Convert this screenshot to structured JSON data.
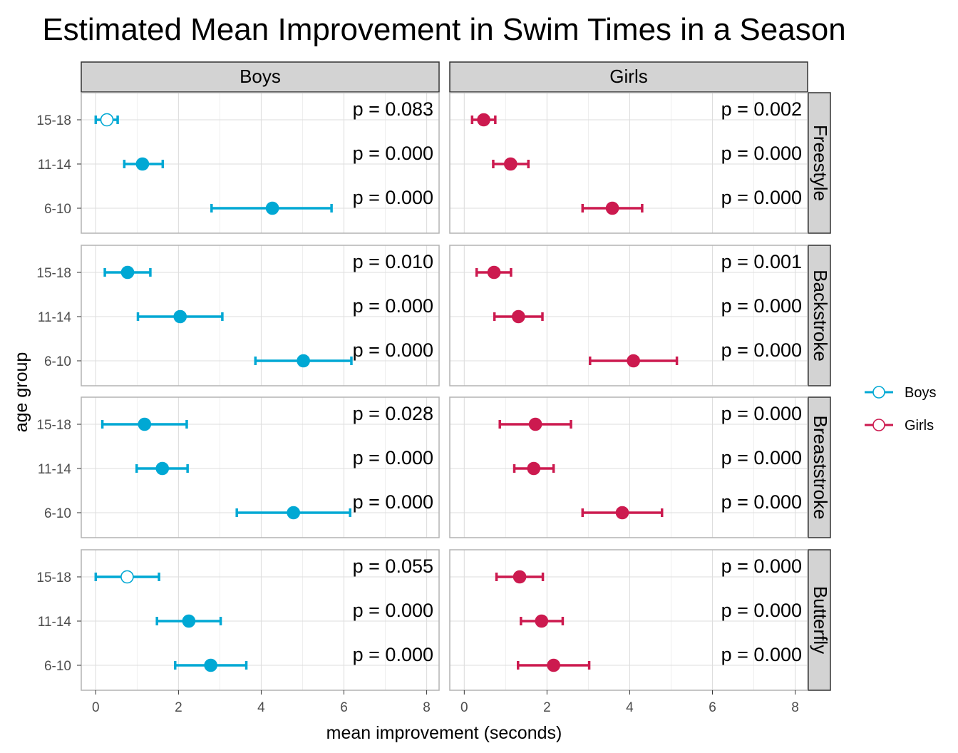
{
  "chart_data": {
    "type": "scatter",
    "title": "Estimated Mean Improvement in Swim Times in a Season",
    "xlabel": "mean improvement (seconds)",
    "ylabel": "age group",
    "xlim": [
      -0.35,
      8.3
    ],
    "x_ticks": [
      "0",
      "2",
      "4",
      "6",
      "8"
    ],
    "categories": [
      "15-18",
      "11-14",
      "6-10"
    ],
    "col_facets": [
      "Boys",
      "Girls"
    ],
    "row_facets": [
      "Freestyle",
      "Backstroke",
      "Breaststroke",
      "Butterfly"
    ],
    "grid": true,
    "legend_position": "right",
    "series": [
      {
        "name": "Boys",
        "color": "#00A8D4",
        "panels": [
          {
            "stroke": "Freestyle",
            "points": [
              {
                "age": "15-18",
                "est": 0.27,
                "lo": 0.0,
                "hi": 0.53,
                "p": "p = 0.083",
                "filled": false
              },
              {
                "age": "11-14",
                "est": 1.13,
                "lo": 0.69,
                "hi": 1.62,
                "p": "p = 0.000",
                "filled": true
              },
              {
                "age": "6-10",
                "est": 4.27,
                "lo": 2.8,
                "hi": 5.7,
                "p": "p = 0.000",
                "filled": true
              }
            ]
          },
          {
            "stroke": "Backstroke",
            "points": [
              {
                "age": "15-18",
                "est": 0.77,
                "lo": 0.22,
                "hi": 1.32,
                "p": "p = 0.010",
                "filled": true
              },
              {
                "age": "11-14",
                "est": 2.04,
                "lo": 1.02,
                "hi": 3.06,
                "p": "p = 0.000",
                "filled": true
              },
              {
                "age": "6-10",
                "est": 5.02,
                "lo": 3.86,
                "hi": 6.18,
                "p": "p = 0.000",
                "filled": true
              }
            ]
          },
          {
            "stroke": "Breaststroke",
            "points": [
              {
                "age": "15-18",
                "est": 1.18,
                "lo": 0.16,
                "hi": 2.2,
                "p": "p = 0.028",
                "filled": true
              },
              {
                "age": "11-14",
                "est": 1.61,
                "lo": 0.99,
                "hi": 2.22,
                "p": "p = 0.000",
                "filled": true
              },
              {
                "age": "6-10",
                "est": 4.78,
                "lo": 3.41,
                "hi": 6.15,
                "p": "p = 0.000",
                "filled": true
              }
            ]
          },
          {
            "stroke": "Butterfly",
            "points": [
              {
                "age": "15-18",
                "est": 0.76,
                "lo": 0.0,
                "hi": 1.53,
                "p": "p = 0.055",
                "filled": false
              },
              {
                "age": "11-14",
                "est": 2.25,
                "lo": 1.48,
                "hi": 3.02,
                "p": "p = 0.000",
                "filled": true
              },
              {
                "age": "6-10",
                "est": 2.78,
                "lo": 1.92,
                "hi": 3.64,
                "p": "p = 0.000",
                "filled": true
              }
            ]
          }
        ]
      },
      {
        "name": "Girls",
        "color": "#CC1A4F",
        "panels": [
          {
            "stroke": "Freestyle",
            "points": [
              {
                "age": "15-18",
                "est": 0.47,
                "lo": 0.19,
                "hi": 0.75,
                "p": "p = 0.002",
                "filled": true
              },
              {
                "age": "11-14",
                "est": 1.12,
                "lo": 0.7,
                "hi": 1.55,
                "p": "p = 0.000",
                "filled": true
              },
              {
                "age": "6-10",
                "est": 3.58,
                "lo": 2.86,
                "hi": 4.3,
                "p": "p = 0.000",
                "filled": true
              }
            ]
          },
          {
            "stroke": "Backstroke",
            "points": [
              {
                "age": "15-18",
                "est": 0.72,
                "lo": 0.3,
                "hi": 1.13,
                "p": "p = 0.001",
                "filled": true
              },
              {
                "age": "11-14",
                "est": 1.31,
                "lo": 0.73,
                "hi": 1.89,
                "p": "p = 0.000",
                "filled": true
              },
              {
                "age": "6-10",
                "est": 4.09,
                "lo": 3.04,
                "hi": 5.14,
                "p": "p = 0.000",
                "filled": true
              }
            ]
          },
          {
            "stroke": "Breaststroke",
            "points": [
              {
                "age": "15-18",
                "est": 1.72,
                "lo": 0.86,
                "hi": 2.58,
                "p": "p = 0.000",
                "filled": true
              },
              {
                "age": "11-14",
                "est": 1.68,
                "lo": 1.21,
                "hi": 2.16,
                "p": "p = 0.000",
                "filled": true
              },
              {
                "age": "6-10",
                "est": 3.82,
                "lo": 2.86,
                "hi": 4.78,
                "p": "p = 0.000",
                "filled": true
              }
            ]
          },
          {
            "stroke": "Butterfly",
            "points": [
              {
                "age": "15-18",
                "est": 1.34,
                "lo": 0.78,
                "hi": 1.9,
                "p": "p = 0.000",
                "filled": true
              },
              {
                "age": "11-14",
                "est": 1.87,
                "lo": 1.37,
                "hi": 2.38,
                "p": "p = 0.000",
                "filled": true
              },
              {
                "age": "6-10",
                "est": 2.16,
                "lo": 1.3,
                "hi": 3.02,
                "p": "p = 0.000",
                "filled": true
              }
            ]
          }
        ]
      }
    ]
  }
}
